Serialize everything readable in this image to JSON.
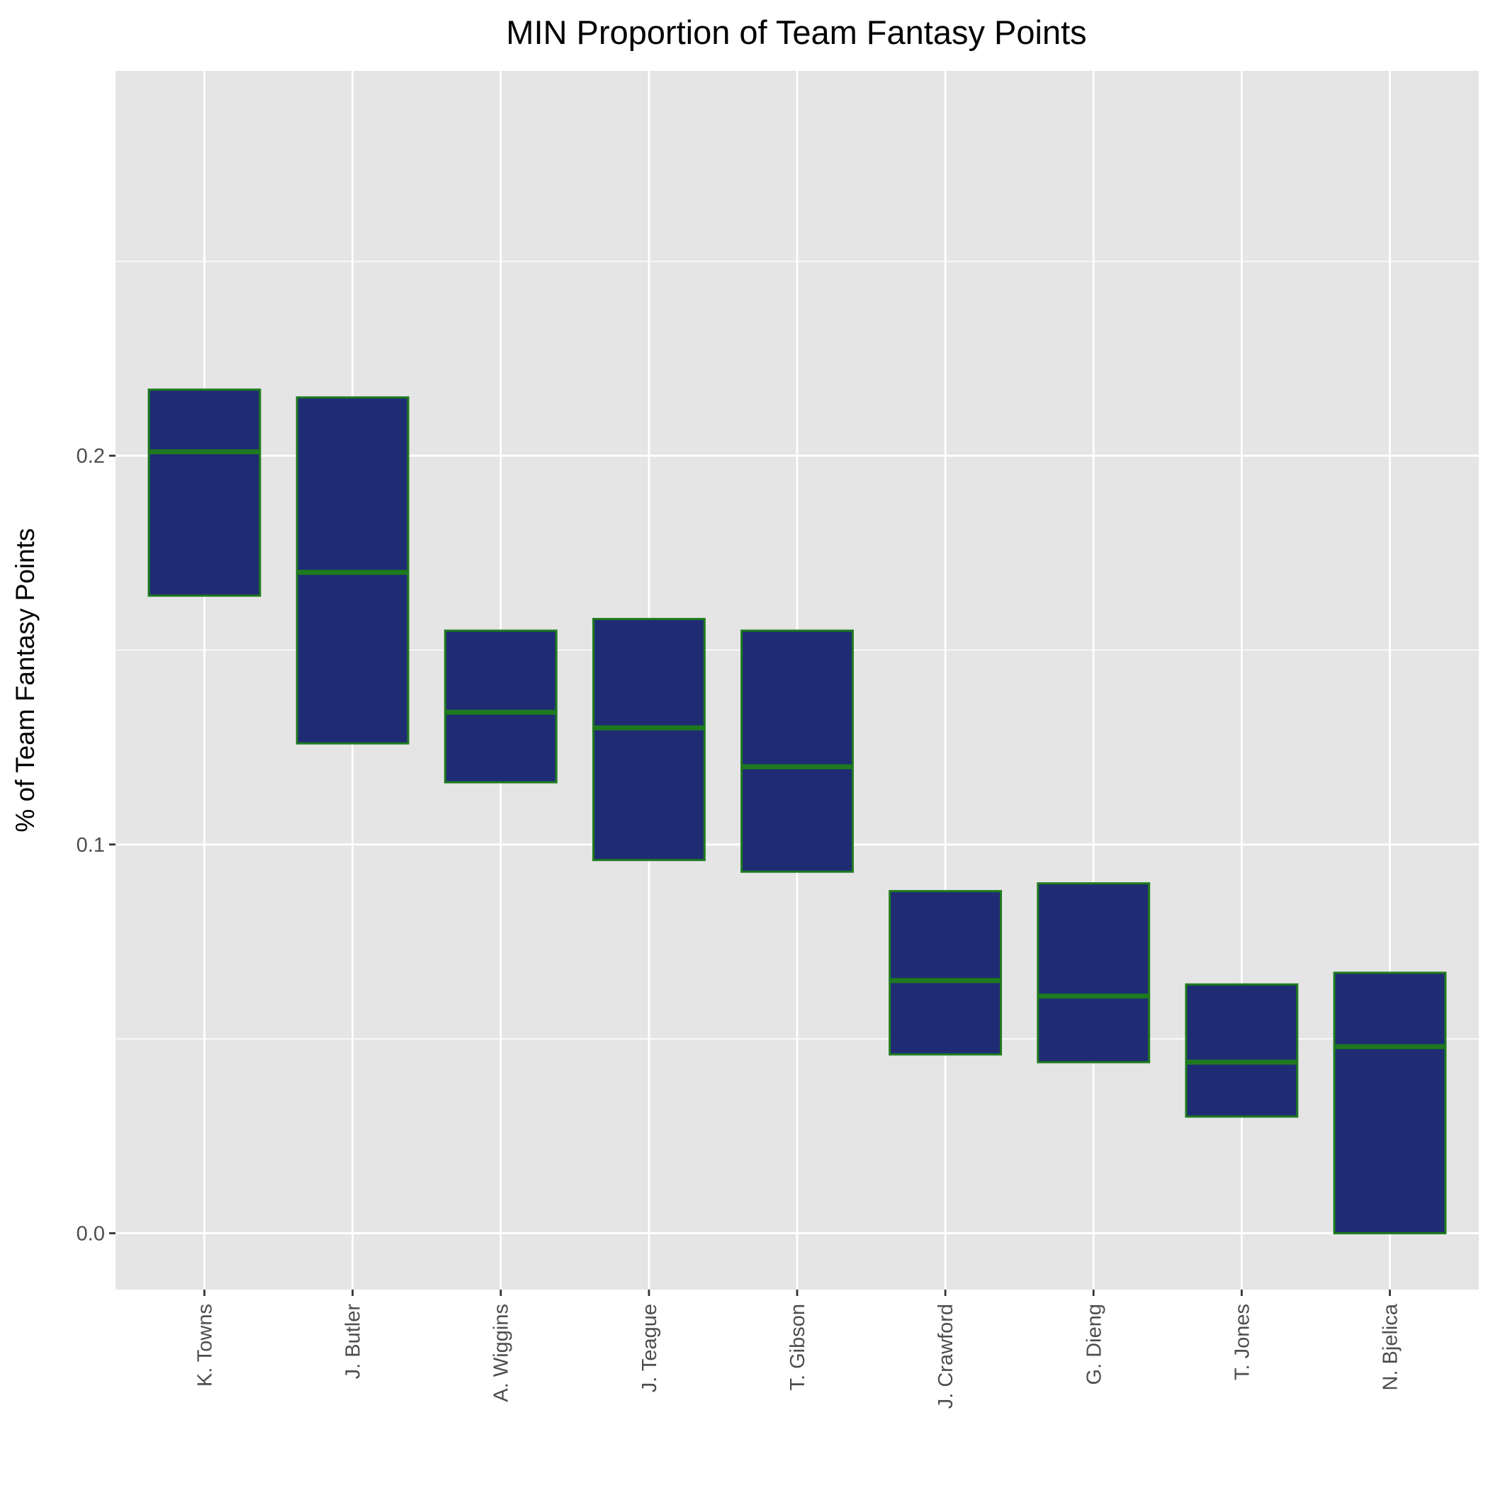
{
  "chart_data": {
    "type": "box",
    "title": "MIN Proportion of Team Fantasy Points",
    "xlabel": "",
    "ylabel": "% of Team Fantasy Points",
    "ylim": [
      -0.0145,
      0.299
    ],
    "yticks": [
      0.0,
      0.1,
      0.2
    ],
    "ytick_labels": [
      "0.0",
      "0.1",
      "0.2"
    ],
    "grid": true,
    "categories": [
      "K. Towns",
      "J. Butler",
      "A. Wiggins",
      "J. Teague",
      "T. Gibson",
      "J. Crawford",
      "G. Dieng",
      "T. Jones",
      "N. Bjelica"
    ],
    "q1": [
      0.164,
      0.126,
      0.116,
      0.096,
      0.093,
      0.046,
      0.044,
      0.03,
      0.0
    ],
    "median": [
      0.201,
      0.17,
      0.134,
      0.13,
      0.12,
      0.065,
      0.061,
      0.044,
      0.048
    ],
    "q3": [
      0.217,
      0.215,
      0.155,
      0.158,
      0.155,
      0.088,
      0.09,
      0.064,
      0.067
    ],
    "colors": {
      "panel": "#e5e5e5",
      "grid": "#ffffff",
      "box_fill": "#1f2c74",
      "box_stroke": "#1e7a1e",
      "tick": "#333333"
    }
  }
}
